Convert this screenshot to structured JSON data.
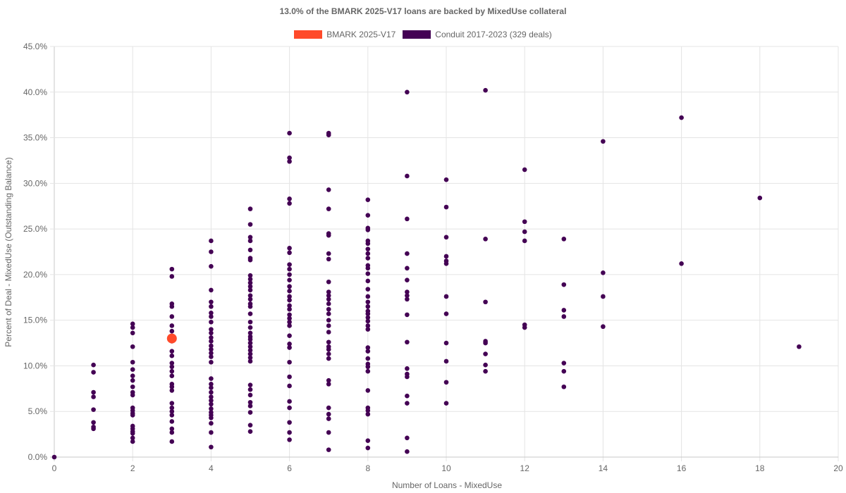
{
  "chart_data": {
    "type": "scatter",
    "title": "13.0% of the BMARK 2025-V17 loans are backed by MixedUse collateral",
    "xlabel": "Number of Loans - MixedUse",
    "ylabel": "Percent of Deal - MixedUse (Outstanding Balance)",
    "xlim": [
      0,
      20
    ],
    "ylim": [
      0,
      45
    ],
    "x_ticks": [
      "0",
      "2",
      "4",
      "6",
      "8",
      "10",
      "12",
      "14",
      "16",
      "18",
      "20"
    ],
    "y_ticks": [
      "0.0%",
      "5.0%",
      "10.0%",
      "15.0%",
      "20.0%",
      "25.0%",
      "30.0%",
      "35.0%",
      "40.0%",
      "45.0%"
    ],
    "grid": true,
    "legend_position": "top-center",
    "series": [
      {
        "name": "BMARK 2025-V17",
        "color": "#FF4A2A",
        "points": [
          [
            3,
            13.0
          ]
        ]
      },
      {
        "name": "Conduit 2017-2023 (329 deals)",
        "color": "#440154",
        "points": [
          [
            0,
            0.0
          ],
          [
            1,
            10.1
          ],
          [
            1,
            9.3
          ],
          [
            1,
            7.1
          ],
          [
            1,
            6.6
          ],
          [
            1,
            5.2
          ],
          [
            1,
            3.8
          ],
          [
            1,
            3.3
          ],
          [
            1,
            3.1
          ],
          [
            2,
            14.6
          ],
          [
            2,
            14.2
          ],
          [
            2,
            13.6
          ],
          [
            2,
            12.1
          ],
          [
            2,
            10.4
          ],
          [
            2,
            9.6
          ],
          [
            2,
            8.9
          ],
          [
            2,
            8.4
          ],
          [
            2,
            7.7
          ],
          [
            2,
            7.1
          ],
          [
            2,
            6.8
          ],
          [
            2,
            5.4
          ],
          [
            2,
            5.1
          ],
          [
            2,
            4.8
          ],
          [
            2,
            4.6
          ],
          [
            2,
            3.4
          ],
          [
            2,
            3.1
          ],
          [
            2,
            2.8
          ],
          [
            2,
            2.6
          ],
          [
            2,
            2.1
          ],
          [
            2,
            1.7
          ],
          [
            3,
            20.6
          ],
          [
            3,
            19.8
          ],
          [
            3,
            16.8
          ],
          [
            3,
            16.5
          ],
          [
            3,
            15.4
          ],
          [
            3,
            14.4
          ],
          [
            3,
            13.8
          ],
          [
            3,
            12.7
          ],
          [
            3,
            11.6
          ],
          [
            3,
            11.1
          ],
          [
            3,
            10.3
          ],
          [
            3,
            9.9
          ],
          [
            3,
            9.4
          ],
          [
            3,
            8.9
          ],
          [
            3,
            8.0
          ],
          [
            3,
            7.7
          ],
          [
            3,
            7.3
          ],
          [
            3,
            5.9
          ],
          [
            3,
            5.4
          ],
          [
            3,
            5.0
          ],
          [
            3,
            4.6
          ],
          [
            3,
            3.9
          ],
          [
            3,
            3.1
          ],
          [
            3,
            2.7
          ],
          [
            3,
            1.7
          ],
          [
            4,
            23.7
          ],
          [
            4,
            22.5
          ],
          [
            4,
            20.9
          ],
          [
            4,
            18.3
          ],
          [
            4,
            17.0
          ],
          [
            4,
            16.5
          ],
          [
            4,
            15.8
          ],
          [
            4,
            15.4
          ],
          [
            4,
            14.8
          ],
          [
            4,
            14.0
          ],
          [
            4,
            13.6
          ],
          [
            4,
            13.1
          ],
          [
            4,
            12.7
          ],
          [
            4,
            12.2
          ],
          [
            4,
            11.8
          ],
          [
            4,
            11.4
          ],
          [
            4,
            11.0
          ],
          [
            4,
            10.4
          ],
          [
            4,
            8.6
          ],
          [
            4,
            8.0
          ],
          [
            4,
            7.6
          ],
          [
            4,
            7.1
          ],
          [
            4,
            6.6
          ],
          [
            4,
            6.2
          ],
          [
            4,
            5.8
          ],
          [
            4,
            5.3
          ],
          [
            4,
            4.9
          ],
          [
            4,
            4.6
          ],
          [
            4,
            4.3
          ],
          [
            4,
            3.7
          ],
          [
            4,
            2.7
          ],
          [
            4,
            1.1
          ],
          [
            5,
            27.2
          ],
          [
            5,
            25.5
          ],
          [
            5,
            24.1
          ],
          [
            5,
            23.7
          ],
          [
            5,
            22.7
          ],
          [
            5,
            21.8
          ],
          [
            5,
            21.6
          ],
          [
            5,
            19.9
          ],
          [
            5,
            19.5
          ],
          [
            5,
            19.1
          ],
          [
            5,
            18.7
          ],
          [
            5,
            18.3
          ],
          [
            5,
            17.7
          ],
          [
            5,
            17.3
          ],
          [
            5,
            16.8
          ],
          [
            5,
            16.5
          ],
          [
            5,
            15.7
          ],
          [
            5,
            14.8
          ],
          [
            5,
            14.2
          ],
          [
            5,
            13.6
          ],
          [
            5,
            13.2
          ],
          [
            5,
            12.9
          ],
          [
            5,
            12.5
          ],
          [
            5,
            12.1
          ],
          [
            5,
            11.7
          ],
          [
            5,
            11.3
          ],
          [
            5,
            10.9
          ],
          [
            5,
            10.5
          ],
          [
            5,
            7.9
          ],
          [
            5,
            7.4
          ],
          [
            5,
            6.8
          ],
          [
            5,
            6.0
          ],
          [
            5,
            5.6
          ],
          [
            5,
            4.9
          ],
          [
            5,
            3.5
          ],
          [
            5,
            2.8
          ],
          [
            6,
            35.5
          ],
          [
            6,
            32.8
          ],
          [
            6,
            32.4
          ],
          [
            6,
            28.3
          ],
          [
            6,
            27.8
          ],
          [
            6,
            22.9
          ],
          [
            6,
            22.4
          ],
          [
            6,
            21.1
          ],
          [
            6,
            20.6
          ],
          [
            6,
            20.0
          ],
          [
            6,
            19.4
          ],
          [
            6,
            18.7
          ],
          [
            6,
            18.2
          ],
          [
            6,
            17.6
          ],
          [
            6,
            17.2
          ],
          [
            6,
            16.6
          ],
          [
            6,
            16.2
          ],
          [
            6,
            15.6
          ],
          [
            6,
            15.2
          ],
          [
            6,
            14.8
          ],
          [
            6,
            14.4
          ],
          [
            6,
            13.3
          ],
          [
            6,
            12.4
          ],
          [
            6,
            12.0
          ],
          [
            6,
            10.4
          ],
          [
            6,
            8.8
          ],
          [
            6,
            7.8
          ],
          [
            6,
            6.1
          ],
          [
            6,
            5.4
          ],
          [
            6,
            3.8
          ],
          [
            6,
            2.7
          ],
          [
            6,
            1.9
          ],
          [
            7,
            35.5
          ],
          [
            7,
            35.3
          ],
          [
            7,
            29.3
          ],
          [
            7,
            27.2
          ],
          [
            7,
            24.5
          ],
          [
            7,
            24.3
          ],
          [
            7,
            22.3
          ],
          [
            7,
            21.7
          ],
          [
            7,
            19.2
          ],
          [
            7,
            18.1
          ],
          [
            7,
            17.7
          ],
          [
            7,
            17.3
          ],
          [
            7,
            16.8
          ],
          [
            7,
            16.2
          ],
          [
            7,
            15.7
          ],
          [
            7,
            15.0
          ],
          [
            7,
            14.4
          ],
          [
            7,
            13.7
          ],
          [
            7,
            12.6
          ],
          [
            7,
            12.1
          ],
          [
            7,
            11.8
          ],
          [
            7,
            11.3
          ],
          [
            7,
            10.8
          ],
          [
            7,
            8.4
          ],
          [
            7,
            8.0
          ],
          [
            7,
            5.4
          ],
          [
            7,
            4.7
          ],
          [
            7,
            4.2
          ],
          [
            7,
            2.7
          ],
          [
            7,
            0.8
          ],
          [
            8,
            28.2
          ],
          [
            8,
            26.5
          ],
          [
            8,
            25.1
          ],
          [
            8,
            24.9
          ],
          [
            8,
            23.7
          ],
          [
            8,
            23.4
          ],
          [
            8,
            22.8
          ],
          [
            8,
            22.3
          ],
          [
            8,
            21.8
          ],
          [
            8,
            21.0
          ],
          [
            8,
            20.7
          ],
          [
            8,
            20.1
          ],
          [
            8,
            19.3
          ],
          [
            8,
            18.4
          ],
          [
            8,
            17.6
          ],
          [
            8,
            17.0
          ],
          [
            8,
            16.5
          ],
          [
            8,
            16.0
          ],
          [
            8,
            15.7
          ],
          [
            8,
            15.3
          ],
          [
            8,
            14.9
          ],
          [
            8,
            14.4
          ],
          [
            8,
            14.0
          ],
          [
            8,
            12.0
          ],
          [
            8,
            11.6
          ],
          [
            8,
            10.8
          ],
          [
            8,
            10.2
          ],
          [
            8,
            9.9
          ],
          [
            8,
            9.4
          ],
          [
            8,
            7.3
          ],
          [
            8,
            5.4
          ],
          [
            8,
            5.1
          ],
          [
            8,
            4.7
          ],
          [
            8,
            1.8
          ],
          [
            8,
            1.0
          ],
          [
            9,
            40.0
          ],
          [
            9,
            30.8
          ],
          [
            9,
            26.1
          ],
          [
            9,
            22.3
          ],
          [
            9,
            20.7
          ],
          [
            9,
            19.4
          ],
          [
            9,
            18.1
          ],
          [
            9,
            17.7
          ],
          [
            9,
            17.3
          ],
          [
            9,
            15.6
          ],
          [
            9,
            12.6
          ],
          [
            9,
            9.7
          ],
          [
            9,
            9.1
          ],
          [
            9,
            8.8
          ],
          [
            9,
            6.7
          ],
          [
            9,
            5.9
          ],
          [
            9,
            2.1
          ],
          [
            9,
            0.6
          ],
          [
            10,
            30.4
          ],
          [
            10,
            27.4
          ],
          [
            10,
            24.1
          ],
          [
            10,
            22.0
          ],
          [
            10,
            21.5
          ],
          [
            10,
            21.2
          ],
          [
            10,
            17.6
          ],
          [
            10,
            15.7
          ],
          [
            10,
            12.5
          ],
          [
            10,
            10.5
          ],
          [
            10,
            8.2
          ],
          [
            10,
            5.9
          ],
          [
            11,
            40.2
          ],
          [
            11,
            23.9
          ],
          [
            11,
            17.0
          ],
          [
            11,
            12.7
          ],
          [
            11,
            12.5
          ],
          [
            11,
            11.3
          ],
          [
            11,
            10.1
          ],
          [
            11,
            9.4
          ],
          [
            12,
            31.5
          ],
          [
            12,
            25.8
          ],
          [
            12,
            24.7
          ],
          [
            12,
            23.7
          ],
          [
            12,
            14.5
          ],
          [
            12,
            14.2
          ],
          [
            13,
            23.9
          ],
          [
            13,
            18.9
          ],
          [
            13,
            16.1
          ],
          [
            13,
            15.4
          ],
          [
            13,
            10.3
          ],
          [
            13,
            9.4
          ],
          [
            13,
            7.7
          ],
          [
            14,
            34.6
          ],
          [
            14,
            20.2
          ],
          [
            14,
            17.6
          ],
          [
            14,
            14.3
          ],
          [
            16,
            37.2
          ],
          [
            16,
            21.2
          ],
          [
            18,
            28.4
          ],
          [
            19,
            12.1
          ]
        ]
      }
    ]
  }
}
